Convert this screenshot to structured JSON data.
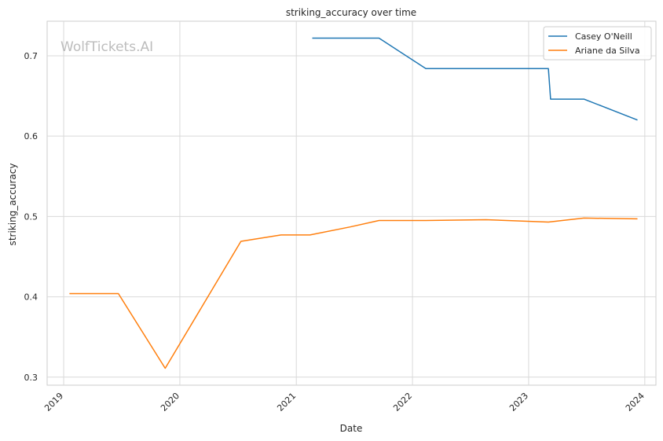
{
  "watermark": "WolfTickets.AI",
  "chart_data": {
    "type": "line",
    "title": "striking_accuracy over time",
    "xlabel": "Date",
    "ylabel": "striking_accuracy",
    "x_ticks": [
      "2019",
      "2020",
      "2021",
      "2022",
      "2023",
      "2024"
    ],
    "y_ticks": [
      "0.3",
      "0.4",
      "0.5",
      "0.6",
      "0.7"
    ],
    "xlim": [
      "2018-11-10",
      "2024-02-05"
    ],
    "ylim": [
      0.29,
      0.743
    ],
    "grid": true,
    "legend_position": "top-right",
    "series": [
      {
        "name": "Casey O'Neill",
        "color": "#1f77b4",
        "points": [
          [
            "2021-02-20",
            0.722
          ],
          [
            "2021-09-18",
            0.722
          ],
          [
            "2022-02-12",
            0.684
          ],
          [
            "2023-03-04",
            0.684
          ],
          [
            "2023-03-11",
            0.646
          ],
          [
            "2023-06-24",
            0.646
          ],
          [
            "2023-12-09",
            0.62
          ]
        ]
      },
      {
        "name": "Ariane da Silva",
        "color": "#ff7f0e",
        "points": [
          [
            "2019-01-19",
            0.404
          ],
          [
            "2019-06-22",
            0.404
          ],
          [
            "2019-11-16",
            0.311
          ],
          [
            "2020-07-11",
            0.469
          ],
          [
            "2020-11-14",
            0.477
          ],
          [
            "2021-02-13",
            0.477
          ],
          [
            "2021-06-19",
            0.487
          ],
          [
            "2021-09-18",
            0.495
          ],
          [
            "2022-02-12",
            0.495
          ],
          [
            "2022-08-20",
            0.496
          ],
          [
            "2023-03-04",
            0.493
          ],
          [
            "2023-06-24",
            0.498
          ],
          [
            "2023-12-09",
            0.497
          ]
        ]
      }
    ]
  }
}
